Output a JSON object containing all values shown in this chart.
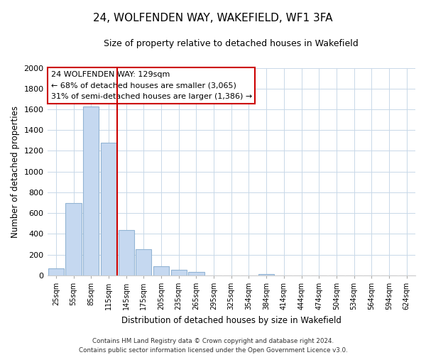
{
  "title": "24, WOLFENDEN WAY, WAKEFIELD, WF1 3FA",
  "subtitle": "Size of property relative to detached houses in Wakefield",
  "xlabel": "Distribution of detached houses by size in Wakefield",
  "ylabel": "Number of detached properties",
  "bar_labels": [
    "25sqm",
    "55sqm",
    "85sqm",
    "115sqm",
    "145sqm",
    "175sqm",
    "205sqm",
    "235sqm",
    "265sqm",
    "295sqm",
    "325sqm",
    "354sqm",
    "384sqm",
    "414sqm",
    "444sqm",
    "474sqm",
    "504sqm",
    "534sqm",
    "564sqm",
    "594sqm",
    "624sqm"
  ],
  "bar_values": [
    65,
    695,
    1630,
    1280,
    435,
    255,
    90,
    50,
    30,
    0,
    0,
    0,
    15,
    0,
    0,
    0,
    0,
    0,
    0,
    0,
    0
  ],
  "bar_color": "#c5d8f0",
  "bar_edge_color": "#92b4d4",
  "vline_color": "#cc0000",
  "vline_pos": 3.5,
  "ylim": [
    0,
    2000
  ],
  "yticks": [
    0,
    200,
    400,
    600,
    800,
    1000,
    1200,
    1400,
    1600,
    1800,
    2000
  ],
  "annotation_title": "24 WOLFENDEN WAY: 129sqm",
  "annotation_line1": "← 68% of detached houses are smaller (3,065)",
  "annotation_line2": "31% of semi-detached houses are larger (1,386) →",
  "annotation_box_color": "#ffffff",
  "annotation_box_edgecolor": "#cc0000",
  "footer_line1": "Contains HM Land Registry data © Crown copyright and database right 2024.",
  "footer_line2": "Contains public sector information licensed under the Open Government Licence v3.0.",
  "background_color": "#ffffff",
  "grid_color": "#c8d8e8"
}
